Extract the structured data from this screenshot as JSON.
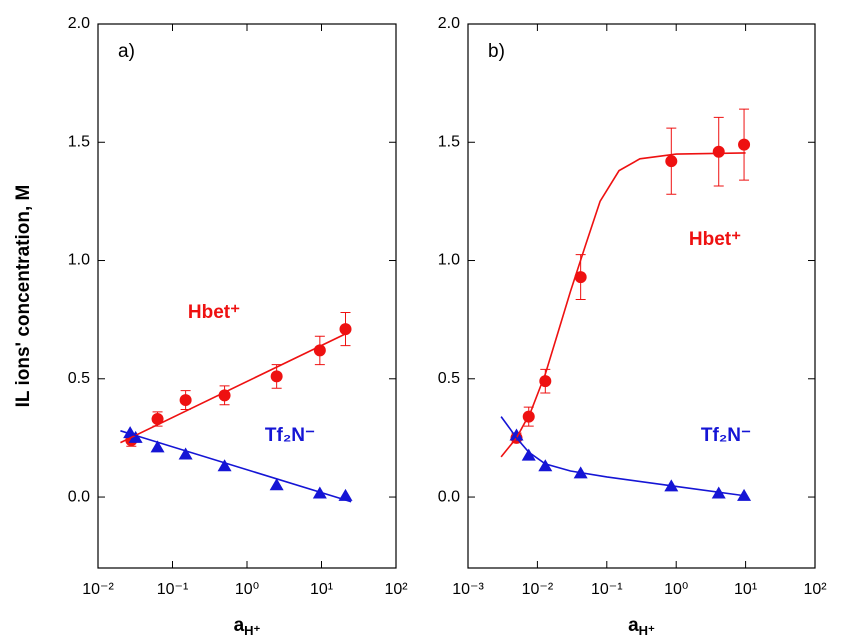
{
  "chart_data": [
    {
      "type": "scatter",
      "panel_label": "a)",
      "ylabel": "IL ions' concentration, M",
      "xlabel": {
        "text": "a",
        "subscript": "H⁺"
      },
      "log_x": true,
      "xlim": [
        0.01,
        100
      ],
      "xticks": [
        {
          "value": 0.01,
          "label": "10⁻²"
        },
        {
          "value": 0.1,
          "label": "10⁻¹"
        },
        {
          "value": 1,
          "label": "10⁰"
        },
        {
          "value": 10,
          "label": "10¹"
        },
        {
          "value": 100,
          "label": "10²"
        }
      ],
      "ylim": [
        -0.3,
        2.0
      ],
      "yticks": [
        {
          "value": 0,
          "label": "0.0"
        },
        0.5,
        {
          "value": 1,
          "label": "1.0"
        },
        1.5,
        {
          "value": 2,
          "label": "2.0"
        }
      ],
      "annotations": [
        {
          "text": "Hbet⁺",
          "color": "#ee1111"
        },
        {
          "text": "Tf₂N⁻",
          "color": "#1515d5"
        }
      ],
      "series": [
        {
          "marker": "circle",
          "color": "#ee1111",
          "x": [
            0.028,
            0.063,
            0.15,
            0.5,
            2.5,
            9.5,
            21
          ],
          "values": [
            0.24,
            0.33,
            0.41,
            0.43,
            0.51,
            0.62,
            0.71
          ],
          "errors": [
            0.025,
            0.03,
            0.04,
            0.04,
            0.05,
            0.06,
            0.07
          ]
        },
        {
          "marker": "triangle",
          "color": "#1515d5",
          "x": [
            0.027,
            0.032,
            0.063,
            0.15,
            0.5,
            2.5,
            9.5,
            21
          ],
          "values": [
            0.27,
            0.25,
            0.21,
            0.18,
            0.13,
            0.05,
            0.015,
            0.005
          ]
        },
        {
          "marker": "line",
          "color": "#ee1111",
          "x": [
            0.02,
            21
          ],
          "values": [
            0.23,
            0.69
          ]
        },
        {
          "marker": "line",
          "color": "#1515d5",
          "x": [
            0.02,
            25
          ],
          "values": [
            0.28,
            -0.02
          ]
        }
      ]
    },
    {
      "type": "scatter",
      "panel_label": "b)",
      "xlabel": {
        "text": "a",
        "subscript": "H⁺"
      },
      "log_x": true,
      "xlim": [
        0.001,
        100
      ],
      "xticks": [
        {
          "value": 0.001,
          "label": "10⁻³"
        },
        {
          "value": 0.01,
          "label": "10⁻²"
        },
        {
          "value": 0.1,
          "label": "10⁻¹"
        },
        {
          "value": 1,
          "label": "10⁰"
        },
        {
          "value": 10,
          "label": "10¹"
        },
        {
          "value": 100,
          "label": "10²"
        }
      ],
      "ylim": [
        -0.3,
        2.0
      ],
      "yticks": [
        {
          "value": 0,
          "label": "0.0"
        },
        0.5,
        {
          "value": 1,
          "label": "1.0"
        },
        1.5,
        {
          "value": 2,
          "label": "2.0"
        }
      ],
      "annotations": [
        {
          "text": "Hbet⁺",
          "color": "#ee1111"
        },
        {
          "text": "Tf₂N⁻",
          "color": "#1515d5"
        }
      ],
      "series": [
        {
          "marker": "circle",
          "color": "#ee1111",
          "x": [
            0.005,
            0.0075,
            0.013,
            0.042,
            0.85,
            4.1,
            9.5
          ],
          "values": [
            0.25,
            0.34,
            0.49,
            0.93,
            1.42,
            1.46,
            1.49
          ],
          "errors": [
            0.02,
            0.04,
            0.05,
            0.095,
            0.14,
            0.145,
            0.15
          ]
        },
        {
          "marker": "triangle",
          "color": "#1515d5",
          "x": [
            0.005,
            0.0075,
            0.013,
            0.042,
            0.85,
            4.1,
            9.5
          ],
          "values": [
            0.26,
            0.175,
            0.13,
            0.1,
            0.045,
            0.015,
            0.005
          ]
        },
        {
          "marker": "line",
          "color": "#ee1111",
          "x": [
            0.003,
            0.005,
            0.008,
            0.013,
            0.02,
            0.03,
            0.05,
            0.08,
            0.15,
            0.3,
            1,
            10
          ],
          "values": [
            0.17,
            0.25,
            0.36,
            0.52,
            0.7,
            0.87,
            1.07,
            1.25,
            1.38,
            1.43,
            1.45,
            1.455
          ]
        },
        {
          "marker": "line",
          "color": "#1515d5",
          "x": [
            0.003,
            0.004,
            0.005,
            0.0075,
            0.013,
            0.03,
            0.1,
            1,
            10
          ],
          "values": [
            0.34,
            0.29,
            0.25,
            0.19,
            0.14,
            0.11,
            0.085,
            0.045,
            0.005
          ]
        }
      ]
    }
  ]
}
